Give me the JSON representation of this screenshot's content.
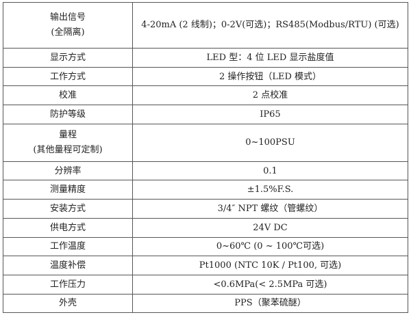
{
  "spec_table": {
    "rows": [
      {
        "label_lines": [
          "输出信号",
          "(全隔离)"
        ],
        "value": "4-20mA (2 线制)；0-2V(可选)；RS485(Modbus/RTU) (可选)"
      },
      {
        "label_lines": [
          "显示方式"
        ],
        "value": "LED 型：4 位 LED 显示盐度值"
      },
      {
        "label_lines": [
          "工作方式"
        ],
        "value": "2 操作按钮（LED 模式）"
      },
      {
        "label_lines": [
          "校准"
        ],
        "value": "2 点校准"
      },
      {
        "label_lines": [
          "防护等级"
        ],
        "value": "IP65"
      },
      {
        "label_lines": [
          "量程",
          "(其他量程可定制)"
        ],
        "value": "0~100PSU"
      },
      {
        "label_lines": [
          "分辨率"
        ],
        "value": "0.1"
      },
      {
        "label_lines": [
          "测量精度"
        ],
        "value": "±1.5%F.S."
      },
      {
        "label_lines": [
          "安装方式"
        ],
        "value": "3/4″ NPT 螺纹（管螺纹）"
      },
      {
        "label_lines": [
          "供电方式"
        ],
        "value": "24V DC"
      },
      {
        "label_lines": [
          "工作温度"
        ],
        "value": "0~60℃ (0 ~ 100℃可选)"
      },
      {
        "label_lines": [
          "温度补偿"
        ],
        "value": "Pt1000 (NTC 10K / Pt100, 可选)"
      },
      {
        "label_lines": [
          "工作压力"
        ],
        "value": "<0.6MPa(< 2.5MPa 可选)"
      },
      {
        "label_lines": [
          "外壳"
        ],
        "value": "PPS（聚苯硫醚）"
      }
    ]
  }
}
